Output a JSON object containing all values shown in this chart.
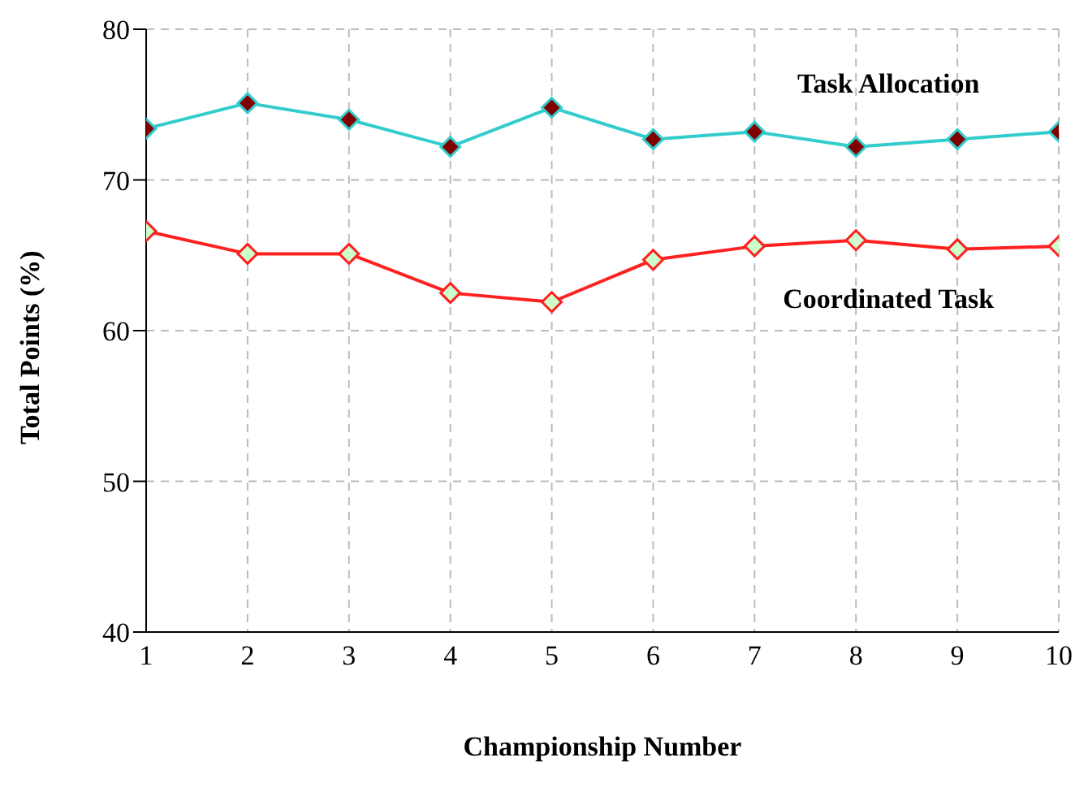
{
  "chart_data": {
    "type": "line",
    "xlabel": "Championship Number",
    "ylabel": "Total Points (%)",
    "x": [
      1,
      2,
      3,
      4,
      5,
      6,
      7,
      8,
      9,
      10
    ],
    "series": [
      {
        "name": "Task Allocation",
        "color": "#33cccc",
        "values": [
          73.4,
          75.1,
          74.0,
          72.2,
          74.8,
          72.7,
          73.2,
          72.2,
          72.7,
          73.2
        ]
      },
      {
        "name": "Coordinated Task",
        "color": "#ff2020",
        "values": [
          66.6,
          65.1,
          65.1,
          62.5,
          61.9,
          64.7,
          65.6,
          66.0,
          65.4,
          65.6
        ]
      }
    ],
    "xlim": [
      1,
      10
    ],
    "xticks": [
      1,
      2,
      3,
      4,
      5,
      6,
      7,
      8,
      9,
      10
    ],
    "ylim": [
      40,
      80
    ],
    "yticks": [
      40,
      50,
      60,
      70,
      80
    ],
    "grid": true,
    "legend": false,
    "marker": "diamond",
    "line_style": "solid"
  }
}
